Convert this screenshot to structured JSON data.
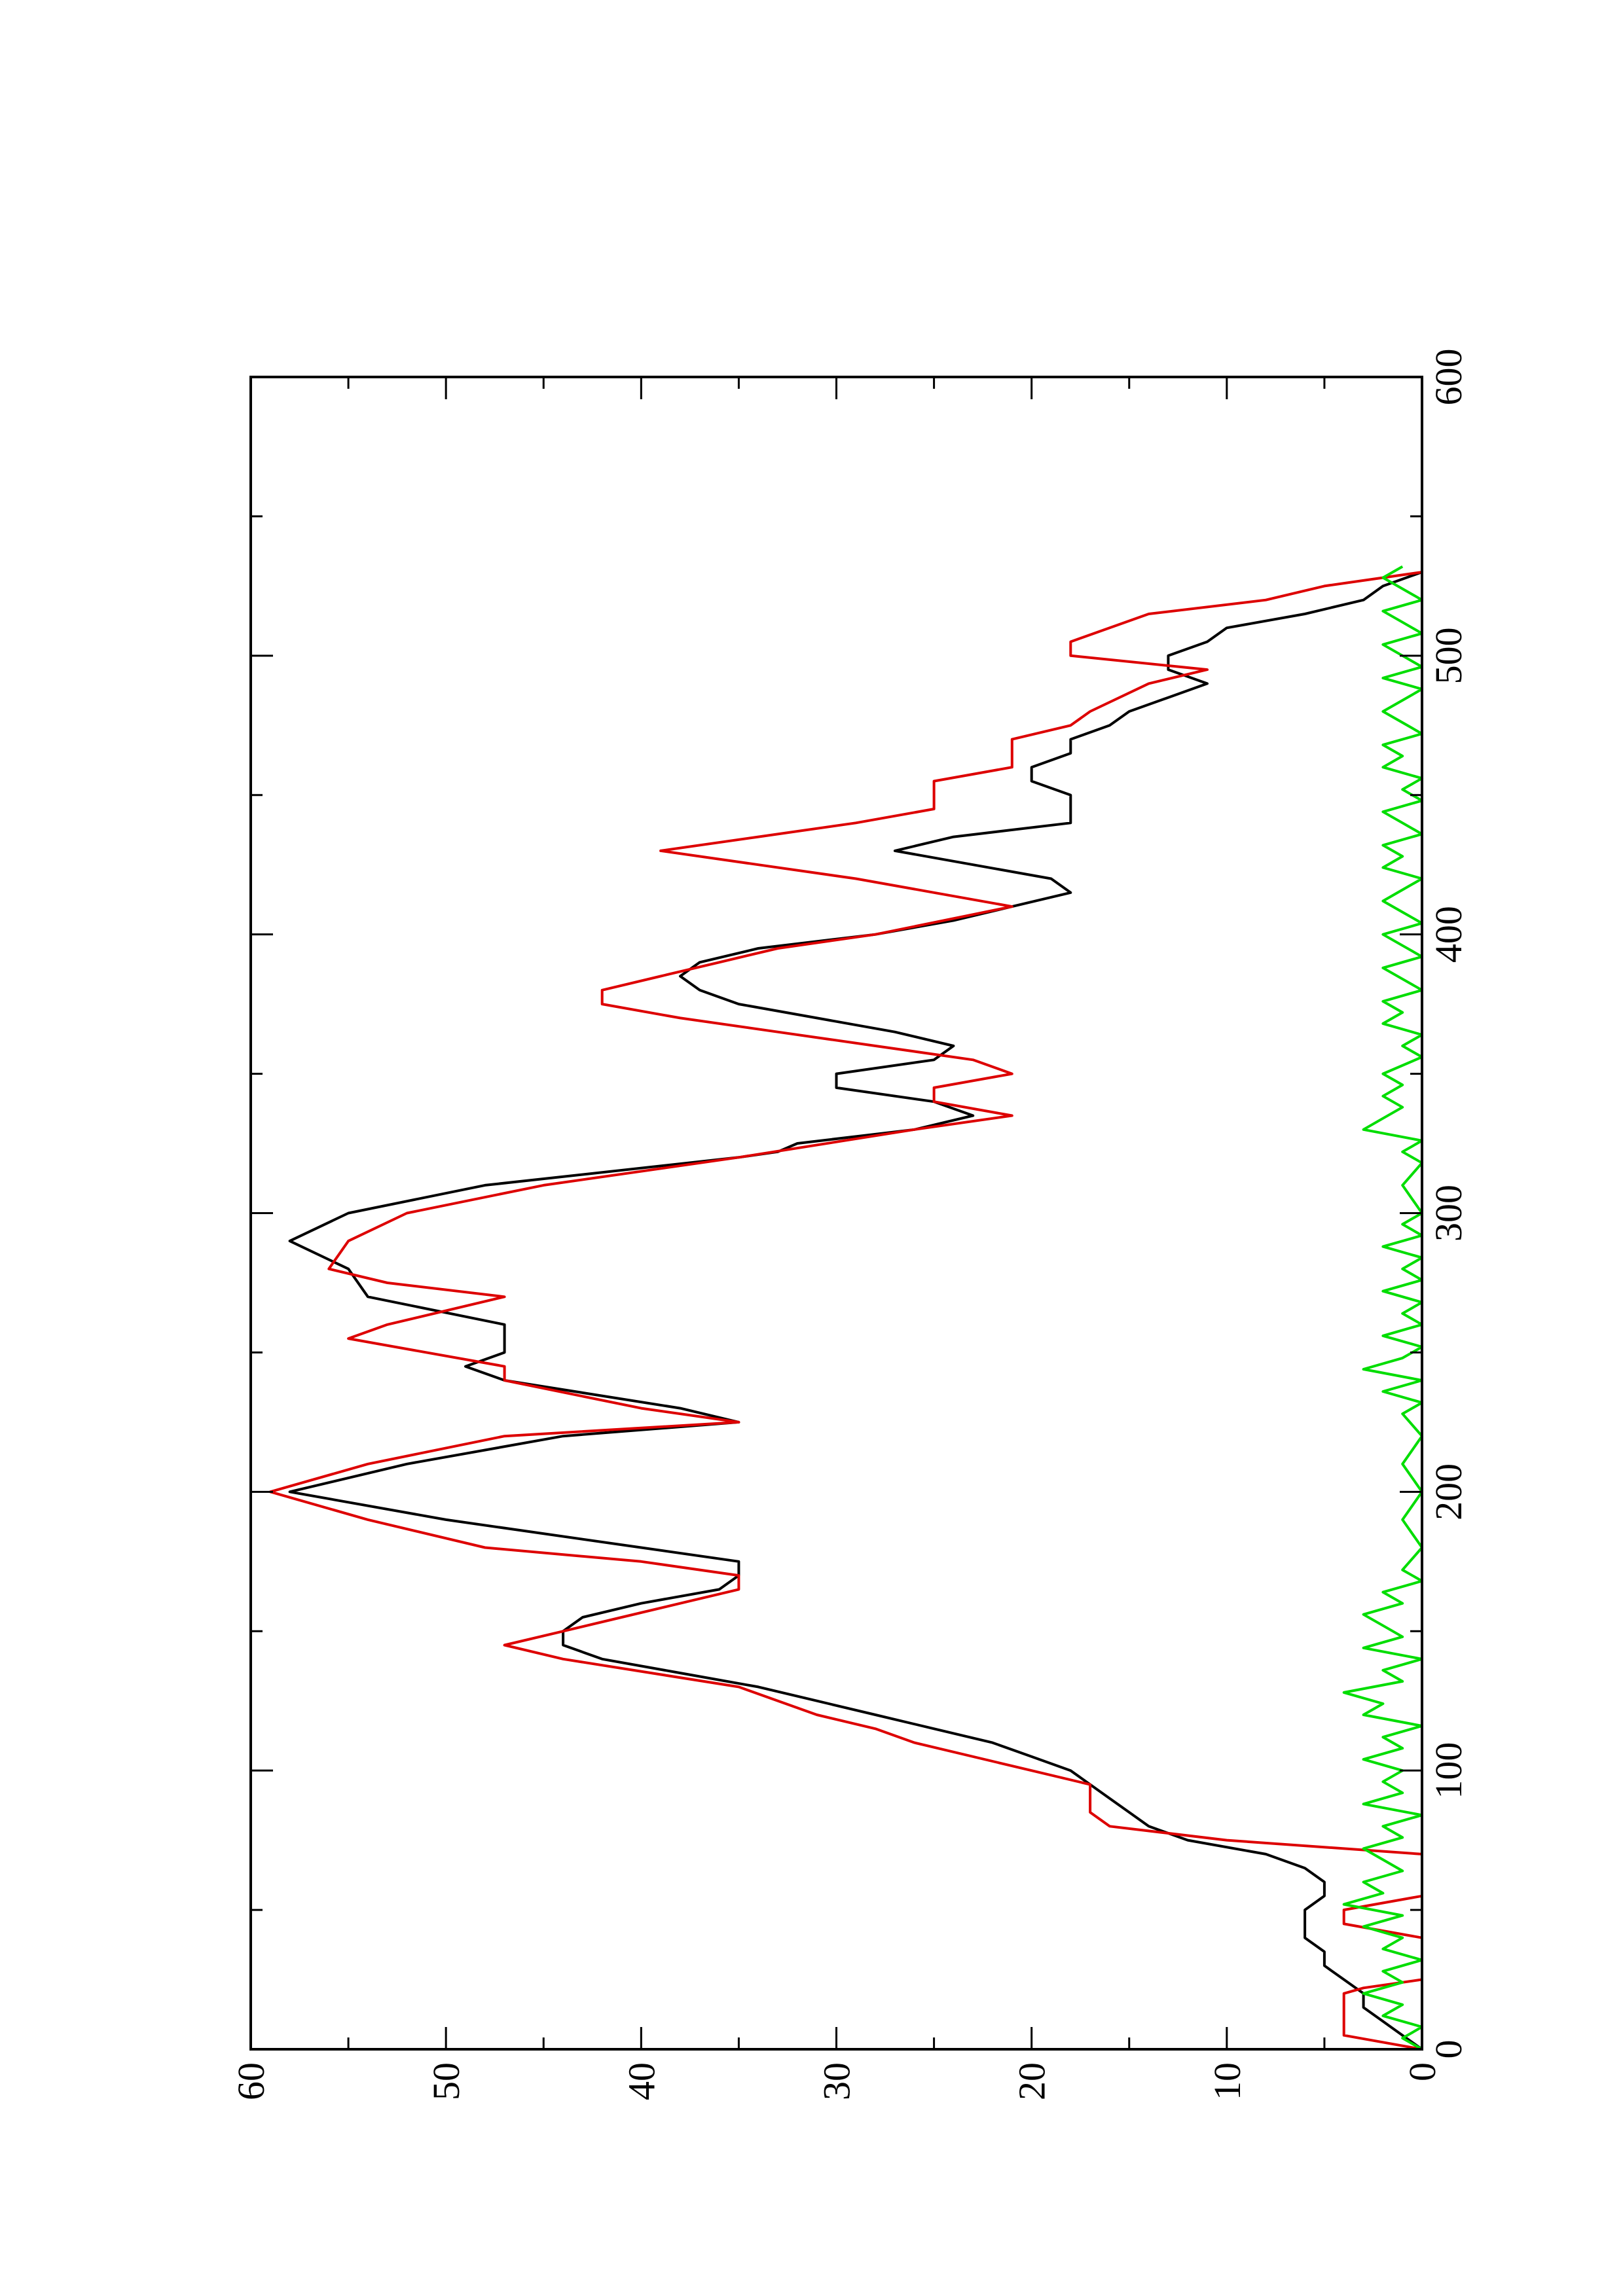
{
  "chart_data": {
    "type": "line",
    "orientation": "rotated-90-ccw",
    "title": "",
    "xlabel": "",
    "ylabel": "",
    "xlim": [
      0,
      600
    ],
    "ylim": [
      0,
      60
    ],
    "x_ticks": [
      "0",
      "100",
      "200",
      "300",
      "400",
      "500",
      "600"
    ],
    "y_ticks": [
      "0",
      "10",
      "20",
      "30",
      "40",
      "50",
      "60"
    ],
    "x_minor_step": 50,
    "y_minor_step": 5,
    "grid": false,
    "legend": "none",
    "series": [
      {
        "color": "#000000",
        "x": [
          0,
          5,
          10,
          15,
          20,
          25,
          30,
          35,
          40,
          45,
          50,
          55,
          60,
          65,
          70,
          75,
          80,
          85,
          90,
          95,
          100,
          105,
          110,
          115,
          120,
          125,
          130,
          135,
          140,
          145,
          150,
          155,
          160,
          165,
          170,
          175,
          180,
          190,
          200,
          210,
          220,
          225,
          230,
          240,
          245,
          250,
          255,
          260,
          270,
          280,
          290,
          300,
          310,
          320,
          322,
          325,
          330,
          335,
          340,
          345,
          350,
          355,
          360,
          365,
          370,
          375,
          380,
          385,
          390,
          395,
          400,
          405,
          410,
          415,
          420,
          425,
          430,
          435,
          440,
          445,
          450,
          455,
          460,
          465,
          470,
          475,
          480,
          485,
          490,
          495,
          500,
          505,
          510,
          515,
          520,
          525,
          530
        ],
        "values": [
          0,
          1,
          2,
          3,
          3,
          4,
          5,
          5,
          6,
          6,
          6,
          5,
          5,
          6,
          8,
          12,
          14,
          15,
          16,
          17,
          18,
          20,
          22,
          25,
          28,
          31,
          34,
          38,
          42,
          44,
          44,
          43,
          40,
          36,
          35,
          35,
          40,
          50,
          58,
          52,
          44,
          35,
          38,
          47,
          49,
          47,
          47,
          47,
          54,
          55,
          58,
          55,
          48,
          35,
          33,
          32,
          26,
          23,
          25,
          30,
          30,
          25,
          24,
          27,
          31,
          35,
          37,
          38,
          37,
          34,
          28,
          24,
          21,
          18,
          19,
          23,
          27,
          24,
          18,
          18,
          18,
          20,
          20,
          18,
          18,
          16,
          15,
          13,
          11,
          13,
          13,
          11,
          10,
          6,
          3,
          2,
          0
        ]
      },
      {
        "color": "#dd0000",
        "x": [
          0,
          5,
          20,
          22,
          25,
          40,
          45,
          50,
          55,
          70,
          75,
          80,
          85,
          95,
          100,
          110,
          115,
          120,
          130,
          140,
          145,
          150,
          155,
          160,
          165,
          170,
          175,
          180,
          190,
          200,
          210,
          220,
          225,
          230,
          240,
          245,
          255,
          260,
          270,
          275,
          280,
          290,
          300,
          310,
          320,
          330,
          335,
          340,
          345,
          350,
          355,
          360,
          365,
          370,
          375,
          380,
          385,
          390,
          395,
          400,
          410,
          415,
          420,
          425,
          430,
          435,
          440,
          445,
          455,
          460,
          470,
          475,
          480,
          490,
          495,
          500,
          505,
          515,
          520,
          525,
          530
        ],
        "values": [
          0,
          4,
          4,
          3,
          0,
          0,
          4,
          4,
          0,
          0,
          10,
          16,
          17,
          17,
          20,
          26,
          28,
          31,
          35,
          44,
          47,
          44,
          41,
          38,
          35,
          35,
          40,
          48,
          54,
          59,
          54,
          47,
          35,
          40,
          47,
          47,
          55,
          53,
          47,
          53,
          56,
          55,
          52,
          45,
          35,
          26,
          21,
          25,
          25,
          21,
          23,
          28,
          33,
          38,
          42,
          42,
          39,
          36,
          33,
          28,
          21,
          25,
          29,
          34,
          39,
          34,
          29,
          25,
          25,
          21,
          21,
          18,
          17,
          14,
          11,
          18,
          18,
          14,
          8,
          5,
          0
        ]
      },
      {
        "color": "#00dd00",
        "x": [
          0,
          4,
          8,
          12,
          16,
          20,
          24,
          28,
          32,
          36,
          40,
          44,
          48,
          52,
          56,
          60,
          64,
          68,
          72,
          76,
          80,
          84,
          88,
          92,
          96,
          100,
          104,
          108,
          112,
          116,
          120,
          124,
          128,
          132,
          136,
          140,
          144,
          148,
          152,
          156,
          160,
          164,
          168,
          172,
          180,
          190,
          200,
          210,
          220,
          228,
          232,
          236,
          240,
          244,
          248,
          252,
          256,
          260,
          264,
          268,
          272,
          276,
          280,
          284,
          288,
          292,
          296,
          300,
          310,
          318,
          322,
          326,
          330,
          334,
          338,
          342,
          346,
          350,
          356,
          360,
          364,
          368,
          372,
          376,
          380,
          384,
          388,
          392,
          396,
          400,
          404,
          408,
          412,
          416,
          420,
          424,
          428,
          432,
          436,
          440,
          444,
          448,
          452,
          456,
          460,
          464,
          468,
          472,
          476,
          480,
          484,
          488,
          492,
          496,
          500,
          504,
          508,
          512,
          516,
          520,
          524,
          528,
          532
        ],
        "values": [
          0,
          1,
          0,
          2,
          1,
          3,
          1,
          2,
          0,
          2,
          1,
          3,
          1,
          4,
          2,
          3,
          1,
          2,
          3,
          1,
          2,
          0,
          3,
          1,
          2,
          1,
          3,
          1,
          2,
          0,
          3,
          2,
          4,
          1,
          2,
          0,
          3,
          1,
          2,
          3,
          1,
          2,
          0,
          1,
          0,
          1,
          0,
          1,
          0,
          1,
          0,
          2,
          0,
          3,
          1,
          0,
          2,
          0,
          1,
          0,
          2,
          0,
          1,
          0,
          2,
          0,
          1,
          0,
          1,
          0,
          1,
          0,
          3,
          2,
          1,
          2,
          1,
          2,
          0,
          1,
          0,
          2,
          1,
          2,
          0,
          1,
          2,
          0,
          1,
          2,
          0,
          1,
          2,
          1,
          0,
          2,
          1,
          2,
          0,
          1,
          2,
          0,
          1,
          0,
          2,
          1,
          2,
          0,
          1,
          2,
          1,
          0,
          2,
          0,
          1,
          2,
          0,
          1,
          2,
          0,
          1,
          2,
          1
        ]
      }
    ]
  }
}
